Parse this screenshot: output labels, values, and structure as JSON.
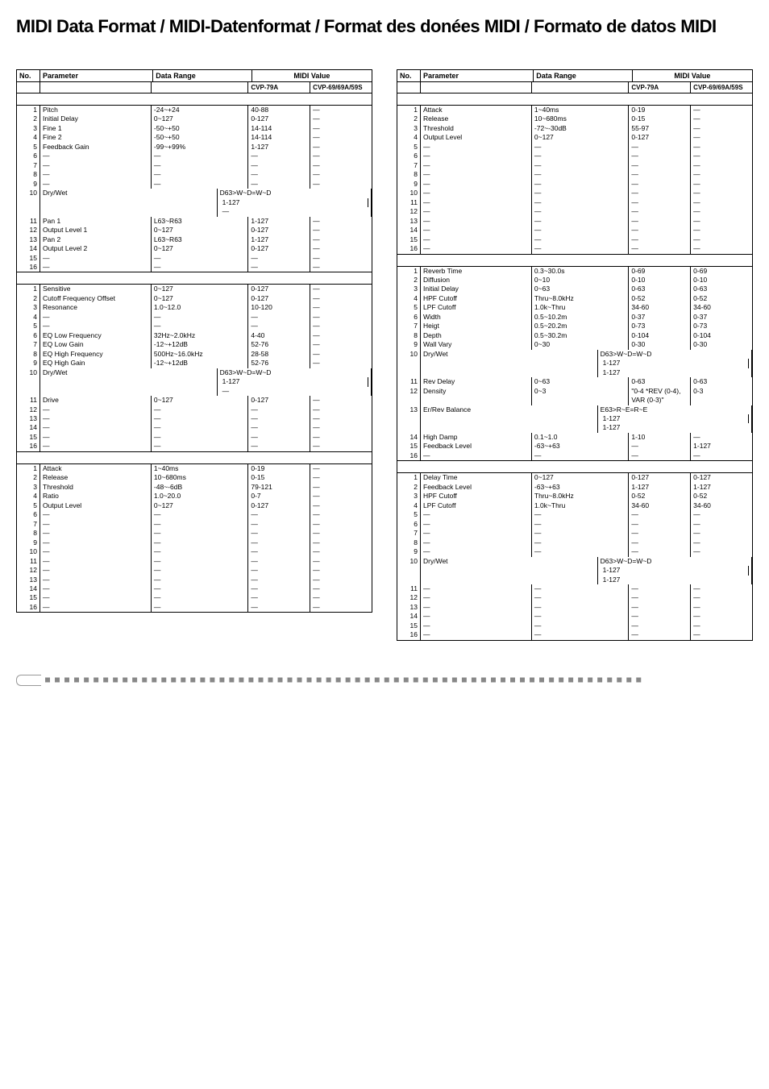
{
  "title": "MIDI Data Format / MIDI-Datenformat / Format des donées MIDI / Formato de datos MIDI",
  "headers": {
    "no": "No.",
    "param": "Parameter",
    "range": "Data Range",
    "midi": "MIDI Value",
    "m1": "CVP-79A",
    "m2": "CVP-69/69A/59S"
  },
  "leftTables": [
    {
      "sections": [
        [
          {
            "no": "1",
            "p": "Pitch",
            "r": "-24~+24",
            "m1": "40-88",
            "m2": "—"
          },
          {
            "no": "2",
            "p": "Initial Delay",
            "r": "0~127",
            "m1": "0-127",
            "m2": "—"
          },
          {
            "no": "3",
            "p": "Fine 1",
            "r": "-50~+50",
            "m1": "14-114",
            "m2": "—"
          },
          {
            "no": "4",
            "p": "Fine 2",
            "r": "-50~+50",
            "m1": "14-114",
            "m2": "—"
          },
          {
            "no": "5",
            "p": "Feedback Gain",
            "r": "-99~+99%",
            "m1": "1-127",
            "m2": "—"
          },
          {
            "no": "6",
            "p": "—",
            "r": "—",
            "m1": "—",
            "m2": "—"
          },
          {
            "no": "7",
            "p": "—",
            "r": "—",
            "m1": "—",
            "m2": "—"
          },
          {
            "no": "8",
            "p": "—",
            "r": "—",
            "m1": "—",
            "m2": "—"
          },
          {
            "no": "9",
            "p": "—",
            "r": "—",
            "m1": "—",
            "m2": "—"
          },
          {
            "no": "10",
            "p": "Dry/Wet",
            "r": "D63>W~D=W~D<W63",
            "m1": "1-127",
            "m2": "—"
          },
          {
            "no": "",
            "p": "",
            "r": "",
            "m1": "",
            "m2": ""
          },
          {
            "no": "11",
            "p": "Pan 1",
            "r": "L63~R63",
            "m1": "1-127",
            "m2": "—"
          },
          {
            "no": "12",
            "p": "Output Level 1",
            "r": "0~127",
            "m1": "0-127",
            "m2": "—"
          },
          {
            "no": "13",
            "p": "Pan 2",
            "r": "L63~R63",
            "m1": "1-127",
            "m2": "—"
          },
          {
            "no": "14",
            "p": "Output Level 2",
            "r": "0~127",
            "m1": "0-127",
            "m2": "—"
          },
          {
            "no": "15",
            "p": "—",
            "r": "—",
            "m1": "—",
            "m2": "—"
          },
          {
            "no": "16",
            "p": "—",
            "r": "—",
            "m1": "—",
            "m2": "—"
          }
        ],
        [
          {
            "no": "1",
            "p": "Sensitive",
            "r": "0~127",
            "m1": "0-127",
            "m2": "—"
          },
          {
            "no": "2",
            "p": "Cutoff Frequency Offset",
            "r": "0~127",
            "m1": "0-127",
            "m2": "—"
          },
          {
            "no": "3",
            "p": "Resonance",
            "r": "1.0~12.0",
            "m1": "10-120",
            "m2": "—"
          },
          {
            "no": "4",
            "p": "—",
            "r": "—",
            "m1": "—",
            "m2": "—"
          },
          {
            "no": "5",
            "p": "—",
            "r": "—",
            "m1": "—",
            "m2": "—"
          },
          {
            "no": "6",
            "p": "EQ Low Frequency",
            "r": "32Hz~2.0kHz",
            "m1": "4-40",
            "m2": "—"
          },
          {
            "no": "7",
            "p": "EQ Low Gain",
            "r": "-12~+12dB",
            "m1": "52-76",
            "m2": "—"
          },
          {
            "no": "8",
            "p": "EQ High Frequency",
            "r": "500Hz~16.0kHz",
            "m1": "28-58",
            "m2": "—"
          },
          {
            "no": "9",
            "p": "EQ High Gain",
            "r": "-12~+12dB",
            "m1": "52-76",
            "m2": "—"
          },
          {
            "no": "10",
            "p": "Dry/Wet",
            "r": "D63>W~D=W~D<W63",
            "m1": "1-127",
            "m2": "—"
          },
          {
            "no": "",
            "p": "",
            "r": "",
            "m1": "",
            "m2": ""
          },
          {
            "no": "11",
            "p": "Drive",
            "r": "0~127",
            "m1": "0-127",
            "m2": "—"
          },
          {
            "no": "12",
            "p": "—",
            "r": "—",
            "m1": "—",
            "m2": "—"
          },
          {
            "no": "13",
            "p": "—",
            "r": "—",
            "m1": "—",
            "m2": "—"
          },
          {
            "no": "14",
            "p": "—",
            "r": "—",
            "m1": "—",
            "m2": "—"
          },
          {
            "no": "15",
            "p": "—",
            "r": "—",
            "m1": "—",
            "m2": "—"
          },
          {
            "no": "16",
            "p": "—",
            "r": "—",
            "m1": "—",
            "m2": "—"
          }
        ],
        [
          {
            "no": "1",
            "p": "Attack",
            "r": "1~40ms",
            "m1": "0-19",
            "m2": "—"
          },
          {
            "no": "2",
            "p": "Release",
            "r": "10~680ms",
            "m1": "0-15",
            "m2": "—"
          },
          {
            "no": "3",
            "p": "Threshold",
            "r": "-48~-6dB",
            "m1": "79-121",
            "m2": "—"
          },
          {
            "no": "4",
            "p": "Ratio",
            "r": "1.0~20.0",
            "m1": "0-7",
            "m2": "—"
          },
          {
            "no": "5",
            "p": "Output Level",
            "r": "0~127",
            "m1": "0-127",
            "m2": "—"
          },
          {
            "no": "6",
            "p": "—",
            "r": "—",
            "m1": "—",
            "m2": "—"
          },
          {
            "no": "7",
            "p": "—",
            "r": "—",
            "m1": "—",
            "m2": "—"
          },
          {
            "no": "8",
            "p": "—",
            "r": "—",
            "m1": "—",
            "m2": "—"
          },
          {
            "no": "9",
            "p": "—",
            "r": "—",
            "m1": "—",
            "m2": "—"
          },
          {
            "no": "10",
            "p": "—",
            "r": "—",
            "m1": "—",
            "m2": "—"
          },
          {
            "no": "",
            "p": "",
            "r": "",
            "m1": "",
            "m2": ""
          },
          {
            "no": "11",
            "p": "—",
            "r": "—",
            "m1": "—",
            "m2": "—"
          },
          {
            "no": "12",
            "p": "—",
            "r": "—",
            "m1": "—",
            "m2": "—"
          },
          {
            "no": "13",
            "p": "—",
            "r": "—",
            "m1": "—",
            "m2": "—"
          },
          {
            "no": "14",
            "p": "—",
            "r": "—",
            "m1": "—",
            "m2": "—"
          },
          {
            "no": "15",
            "p": "—",
            "r": "—",
            "m1": "—",
            "m2": "—"
          },
          {
            "no": "16",
            "p": "—",
            "r": "—",
            "m1": "—",
            "m2": "—"
          }
        ]
      ]
    }
  ],
  "rightTables": [
    {
      "sections": [
        [
          {
            "no": "1",
            "p": "Attack",
            "r": "1~40ms",
            "m1": "0-19",
            "m2": "—"
          },
          {
            "no": "2",
            "p": "Release",
            "r": "10~680ms",
            "m1": "0-15",
            "m2": "—"
          },
          {
            "no": "3",
            "p": "Threshold",
            "r": "-72~-30dB",
            "m1": "55-97",
            "m2": "—"
          },
          {
            "no": "4",
            "p": "Output Level",
            "r": "0~127",
            "m1": "0-127",
            "m2": "—"
          },
          {
            "no": "5",
            "p": "—",
            "r": "—",
            "m1": "—",
            "m2": "—"
          },
          {
            "no": "6",
            "p": "—",
            "r": "—",
            "m1": "—",
            "m2": "—"
          },
          {
            "no": "7",
            "p": "—",
            "r": "—",
            "m1": "—",
            "m2": "—"
          },
          {
            "no": "8",
            "p": "—",
            "r": "—",
            "m1": "—",
            "m2": "—"
          },
          {
            "no": "9",
            "p": "—",
            "r": "—",
            "m1": "—",
            "m2": "—"
          },
          {
            "no": "10",
            "p": "—",
            "r": "—",
            "m1": "—",
            "m2": "—"
          },
          {
            "no": "",
            "p": "",
            "r": "",
            "m1": "",
            "m2": ""
          },
          {
            "no": "11",
            "p": "—",
            "r": "—",
            "m1": "—",
            "m2": "—"
          },
          {
            "no": "12",
            "p": "—",
            "r": "—",
            "m1": "—",
            "m2": "—"
          },
          {
            "no": "13",
            "p": "—",
            "r": "—",
            "m1": "—",
            "m2": "—"
          },
          {
            "no": "14",
            "p": "—",
            "r": "—",
            "m1": "—",
            "m2": "—"
          },
          {
            "no": "15",
            "p": "—",
            "r": "—",
            "m1": "—",
            "m2": "—"
          },
          {
            "no": "16",
            "p": "—",
            "r": "—",
            "m1": "—",
            "m2": "—"
          }
        ],
        [
          {
            "no": "1",
            "p": "Reverb Time",
            "r": "0.3~30.0s",
            "m1": "0-69",
            "m2": "0-69"
          },
          {
            "no": "2",
            "p": "Diffusion",
            "r": "0~10",
            "m1": "0-10",
            "m2": "0-10"
          },
          {
            "no": "3",
            "p": "Initial Delay",
            "r": "0~63",
            "m1": "0-63",
            "m2": "0-63"
          },
          {
            "no": "4",
            "p": "HPF Cutoff",
            "r": "Thru~8.0kHz",
            "m1": "0-52",
            "m2": "0-52"
          },
          {
            "no": "5",
            "p": "LPF Cutoff",
            "r": "1.0k~Thru",
            "m1": "34-60",
            "m2": "34-60"
          },
          {
            "no": "6",
            "p": "Width",
            "r": "0.5~10.2m",
            "m1": "0-37",
            "m2": "0-37"
          },
          {
            "no": "7",
            "p": "Heigt",
            "r": "0.5~20.2m",
            "m1": "0-73",
            "m2": "0-73"
          },
          {
            "no": "8",
            "p": "Depth",
            "r": "0.5~30.2m",
            "m1": "0-104",
            "m2": "0-104"
          },
          {
            "no": "9",
            "p": "Wall Vary",
            "r": "0~30",
            "m1": "0-30",
            "m2": "0-30"
          },
          {
            "no": "10",
            "p": "Dry/Wet",
            "r": "D63>W~D=W~D<W63",
            "m1": "1-127",
            "m2": "1-127"
          },
          {
            "no": "",
            "p": "",
            "r": "",
            "m1": "",
            "m2": ""
          },
          {
            "no": "11",
            "p": "Rev Delay",
            "r": "0~63",
            "m1": "0-63",
            "m2": "0-63"
          },
          {
            "no": "12",
            "p": "Density",
            "r": "0~3",
            "m1": "\"0-4 *REV (0-4), VAR (0-3)\"",
            "m2": "0-3"
          },
          {
            "no": "13",
            "p": "Er/Rev Balance",
            "r": "E63>R~E=R~E<R63",
            "m1": "1-127",
            "m2": "1-127"
          },
          {
            "no": "14",
            "p": "High Damp",
            "r": "0.1~1.0",
            "m1": "1-10",
            "m2": "—"
          },
          {
            "no": "15",
            "p": "Feedback Level",
            "r": "-63~+63",
            "m1": "—",
            "m2": "1-127"
          },
          {
            "no": "16",
            "p": "—",
            "r": "—",
            "m1": "—",
            "m2": "—"
          }
        ],
        [
          {
            "no": "1",
            "p": "Delay Time",
            "r": "0~127",
            "m1": "0-127",
            "m2": "0-127"
          },
          {
            "no": "2",
            "p": "Feedback Level",
            "r": "-63~+63",
            "m1": "1-127",
            "m2": "1-127"
          },
          {
            "no": "3",
            "p": "HPF Cutoff",
            "r": "Thru~8.0kHz",
            "m1": "0-52",
            "m2": "0-52"
          },
          {
            "no": "4",
            "p": "LPF Cutoff",
            "r": "1.0k~Thru",
            "m1": "34-60",
            "m2": "34-60"
          },
          {
            "no": "5",
            "p": "—",
            "r": "—",
            "m1": "—",
            "m2": "—"
          },
          {
            "no": "6",
            "p": "—",
            "r": "—",
            "m1": "—",
            "m2": "—"
          },
          {
            "no": "7",
            "p": "—",
            "r": "—",
            "m1": "—",
            "m2": "—"
          },
          {
            "no": "8",
            "p": "—",
            "r": "—",
            "m1": "—",
            "m2": "—"
          },
          {
            "no": "9",
            "p": "—",
            "r": "—",
            "m1": "—",
            "m2": "—"
          },
          {
            "no": "10",
            "p": "Dry/Wet",
            "r": "D63>W~D=W~D<W63",
            "m1": "1-127",
            "m2": "1-127"
          },
          {
            "no": "",
            "p": "",
            "r": "",
            "m1": "",
            "m2": ""
          },
          {
            "no": "11",
            "p": "—",
            "r": "—",
            "m1": "—",
            "m2": "—"
          },
          {
            "no": "12",
            "p": "—",
            "r": "—",
            "m1": "—",
            "m2": "—"
          },
          {
            "no": "13",
            "p": "—",
            "r": "—",
            "m1": "—",
            "m2": "—"
          },
          {
            "no": "14",
            "p": "—",
            "r": "—",
            "m1": "—",
            "m2": "—"
          },
          {
            "no": "15",
            "p": "—",
            "r": "—",
            "m1": "—",
            "m2": "—"
          },
          {
            "no": "16",
            "p": "—",
            "r": "—",
            "m1": "—",
            "m2": "—"
          }
        ]
      ]
    }
  ]
}
